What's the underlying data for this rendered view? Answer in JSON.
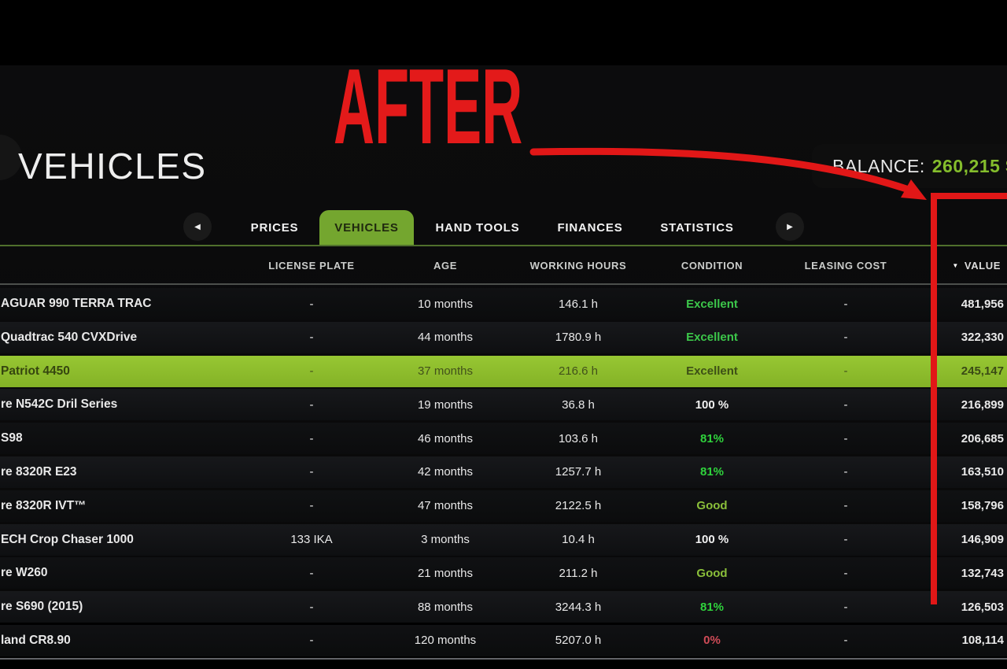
{
  "header": {
    "title": "VEHICLES",
    "balance_label": "BALANCE:",
    "balance_value": "260,215 $"
  },
  "overlay": {
    "after_text": "AFTER"
  },
  "icons": {
    "prev": "◀",
    "next": "▶",
    "sort_desc": "▼"
  },
  "colors": {
    "accent_green": "#74a62f",
    "highlight_row_green": "#8fc02c",
    "balance_green": "#84bd2c",
    "annotation_red": "#e11717",
    "condition_excellent": "#3cc74a",
    "condition_percent": "#2fd33c",
    "condition_good": "#8abf3a",
    "condition_full": "#f0f0f0",
    "condition_zero": "#cf4b57"
  },
  "tabs": {
    "items": [
      {
        "label": "PRICES",
        "active": false
      },
      {
        "label": "VEHICLES",
        "active": true
      },
      {
        "label": "HAND TOOLS",
        "active": false
      },
      {
        "label": "FINANCES",
        "active": false
      },
      {
        "label": "STATISTICS",
        "active": false
      }
    ]
  },
  "table": {
    "columns": [
      "LICENSE PLATE",
      "AGE",
      "WORKING HOURS",
      "CONDITION",
      "LEASING COST",
      "VALUE"
    ],
    "sorted_column": "VALUE",
    "rows": [
      {
        "name": "AGUAR 990 TERRA TRAC",
        "plate": "-",
        "age": "10 months",
        "hours": "146.1 h",
        "condition": "Excellent",
        "condition_color": "#3cc74a",
        "leasing": "-",
        "value": "481,956",
        "highlighted": false
      },
      {
        "name": "Quadtrac 540 CVXDrive",
        "plate": "-",
        "age": "44 months",
        "hours": "1780.9 h",
        "condition": "Excellent",
        "condition_color": "#3cc74a",
        "leasing": "-",
        "value": "322,330",
        "highlighted": false
      },
      {
        "name": "Patriot 4450",
        "plate": "-",
        "age": "37 months",
        "hours": "216.6 h",
        "condition": "Excellent",
        "condition_color": "#3d4f16",
        "leasing": "-",
        "value": "245,147",
        "highlighted": true
      },
      {
        "name": "re N542C Dril Series",
        "plate": "-",
        "age": "19 months",
        "hours": "36.8 h",
        "condition": "100 %",
        "condition_color": "#f0f0f0",
        "leasing": "-",
        "value": "216,899",
        "highlighted": false
      },
      {
        "name": "S98",
        "plate": "-",
        "age": "46 months",
        "hours": "103.6 h",
        "condition": "81%",
        "condition_color": "#2fd33c",
        "leasing": "-",
        "value": "206,685",
        "highlighted": false
      },
      {
        "name": "re 8320R E23",
        "plate": "-",
        "age": "42 months",
        "hours": "1257.7 h",
        "condition": "81%",
        "condition_color": "#2fd33c",
        "leasing": "-",
        "value": "163,510",
        "highlighted": false
      },
      {
        "name": "re 8320R IVT™",
        "plate": "-",
        "age": "47 months",
        "hours": "2122.5 h",
        "condition": "Good",
        "condition_color": "#8abf3a",
        "leasing": "-",
        "value": "158,796",
        "highlighted": false
      },
      {
        "name": "ECH Crop Chaser 1000",
        "plate": "133 IKA",
        "age": "3 months",
        "hours": "10.4 h",
        "condition": "100 %",
        "condition_color": "#f0f0f0",
        "leasing": "-",
        "value": "146,909",
        "highlighted": false
      },
      {
        "name": "re W260",
        "plate": "-",
        "age": "21 months",
        "hours": "211.2 h",
        "condition": "Good",
        "condition_color": "#8abf3a",
        "leasing": "-",
        "value": "132,743",
        "highlighted": false
      },
      {
        "name": "re S690 (2015)",
        "plate": "-",
        "age": "88 months",
        "hours": "3244.3 h",
        "condition": "81%",
        "condition_color": "#2fd33c",
        "leasing": "-",
        "value": "126,503",
        "highlighted": false
      },
      {
        "name": "land CR8.90",
        "plate": "-",
        "age": "120 months",
        "hours": "5207.0 h",
        "condition": "0%",
        "condition_color": "#cf4b57",
        "leasing": "-",
        "value": "108,114",
        "highlighted": false
      }
    ]
  }
}
